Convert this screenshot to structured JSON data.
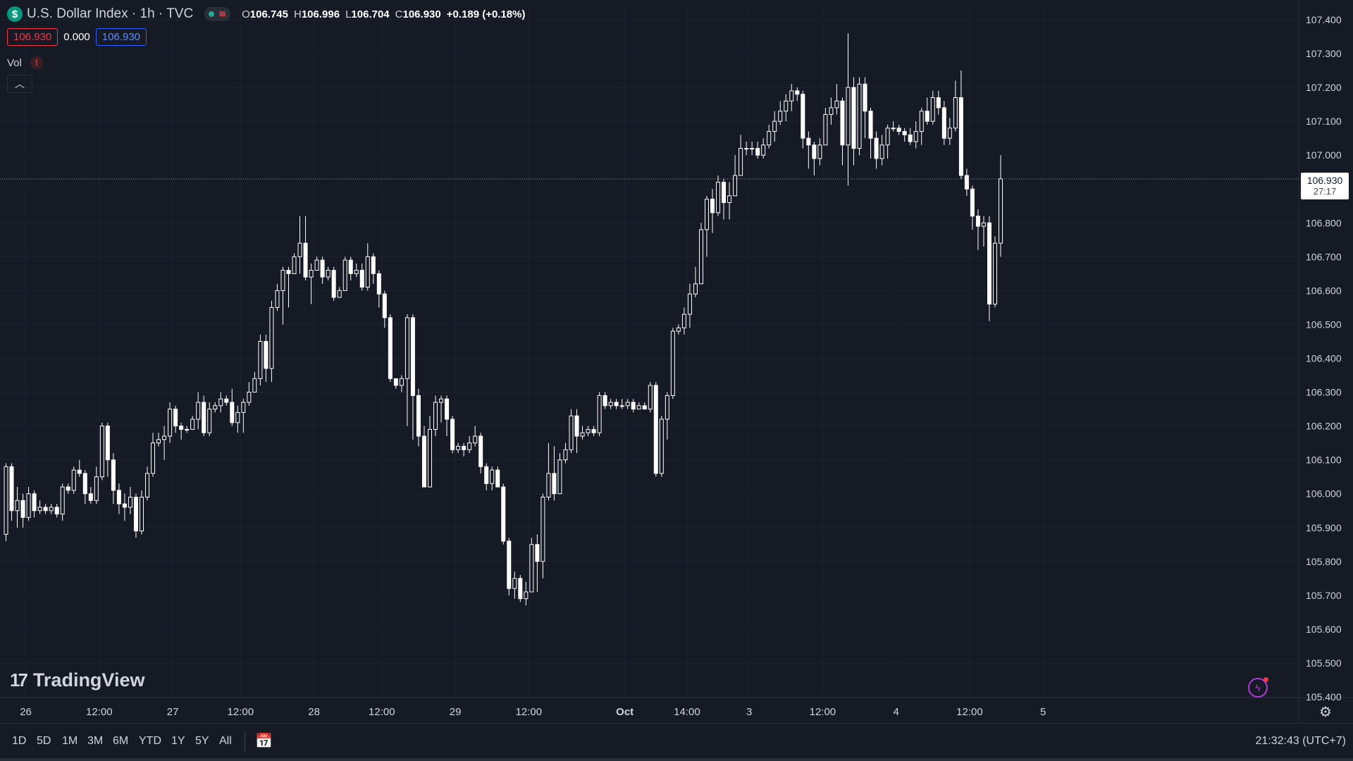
{
  "header": {
    "symbol_icon": "$",
    "title": "U.S. Dollar Index · 1h · TVC",
    "status_icons": [
      "market-open-dot",
      "data-delay-wave-icon"
    ],
    "ohlc": {
      "o_label": "O",
      "o_value": "106.745",
      "h_label": "H",
      "h_value": "106.996",
      "l_label": "L",
      "l_value": "106.704",
      "c_label": "C",
      "c_value": "106.930",
      "change": "+0.189 (+0.18%)"
    },
    "bid": "106.930",
    "spread": "0.000",
    "ask": "106.930",
    "volume_label": "Vol",
    "volume_alert": "!",
    "collapse_icon": "chevron-up-icon"
  },
  "price_label": {
    "value": "106.930",
    "countdown": "27:17"
  },
  "logo": {
    "mark": "17",
    "text": "TradingView"
  },
  "bottom_bar": {
    "ranges": [
      "1D",
      "5D",
      "1M",
      "3M",
      "6M",
      "YTD",
      "1Y",
      "5Y",
      "All"
    ],
    "calendar_icon": "calendar-range-icon",
    "clock": "21:32:43 (UTC+7)"
  },
  "colors": {
    "background": "#161a25",
    "grid": "#1f2330",
    "candle": "#ffffff",
    "text": "#d1d4dc",
    "red": "#f23645",
    "blue": "#2962ff",
    "green": "#089981"
  },
  "chart_data": {
    "type": "candlestick",
    "title": "U.S. Dollar Index · 1h · TVC",
    "grid": true,
    "ylim": [
      105.4,
      107.4
    ],
    "y_ticks": [
      "107.400",
      "107.300",
      "107.200",
      "107.100",
      "107.000",
      "106.900",
      "106.800",
      "106.700",
      "106.600",
      "106.500",
      "106.400",
      "106.300",
      "106.200",
      "106.100",
      "106.000",
      "105.900",
      "105.800",
      "105.700",
      "105.600",
      "105.500",
      "105.400"
    ],
    "x_ticks": [
      {
        "label": "26",
        "bar": 3.5
      },
      {
        "label": "12:00",
        "bar": 16.5
      },
      {
        "label": "27",
        "bar": 29.5
      },
      {
        "label": "12:00",
        "bar": 41.5
      },
      {
        "label": "28",
        "bar": 54.5
      },
      {
        "label": "12:00",
        "bar": 66.5
      },
      {
        "label": "29",
        "bar": 79.5
      },
      {
        "label": "12:00",
        "bar": 92.5
      },
      {
        "label": "Oct",
        "bar": 109.5
      },
      {
        "label": "14:00",
        "bar": 120.5
      },
      {
        "label": "3",
        "bar": 131.5
      },
      {
        "label": "12:00",
        "bar": 144.5
      },
      {
        "label": "4",
        "bar": 157.5
      },
      {
        "label": "12:00",
        "bar": 170.5
      },
      {
        "label": "5",
        "bar": 183.5
      }
    ],
    "last_price": 106.93,
    "candles": [
      [
        105.88,
        106.08,
        106.09,
        105.86
      ],
      [
        106.08,
        105.95,
        106.09,
        105.92
      ],
      [
        105.95,
        105.98,
        106.02,
        105.9
      ],
      [
        105.98,
        105.93,
        106.0,
        105.9
      ],
      [
        105.93,
        106.0,
        106.02,
        105.92
      ],
      [
        106.0,
        105.95,
        106.01,
        105.93
      ],
      [
        105.95,
        105.96,
        105.98,
        105.94
      ],
      [
        105.96,
        105.95,
        105.97,
        105.94
      ],
      [
        105.95,
        105.96,
        105.97,
        105.94
      ],
      [
        105.96,
        105.94,
        105.97,
        105.93
      ],
      [
        105.94,
        106.02,
        106.03,
        105.92
      ],
      [
        106.02,
        106.01,
        106.03,
        106.0
      ],
      [
        106.01,
        106.07,
        106.08,
        106.0
      ],
      [
        106.07,
        106.06,
        106.1,
        106.05
      ],
      [
        106.06,
        106.0,
        106.07,
        105.97
      ],
      [
        106.0,
        105.98,
        106.02,
        105.97
      ],
      [
        105.98,
        106.05,
        106.08,
        105.97
      ],
      [
        106.05,
        106.2,
        106.21,
        106.04
      ],
      [
        106.2,
        106.1,
        106.21,
        106.05
      ],
      [
        106.1,
        106.01,
        106.12,
        105.97
      ],
      [
        106.01,
        105.97,
        106.03,
        105.94
      ],
      [
        105.97,
        105.96,
        106.0,
        105.92
      ],
      [
        105.96,
        105.99,
        106.02,
        105.94
      ],
      [
        105.99,
        105.89,
        106.0,
        105.87
      ],
      [
        105.89,
        105.99,
        106.01,
        105.88
      ],
      [
        105.99,
        106.06,
        106.08,
        105.98
      ],
      [
        106.06,
        106.15,
        106.18,
        106.05
      ],
      [
        106.15,
        106.16,
        106.18,
        106.14
      ],
      [
        106.16,
        106.17,
        106.2,
        106.1
      ],
      [
        106.17,
        106.25,
        106.27,
        106.15
      ],
      [
        106.25,
        106.2,
        106.26,
        106.18
      ],
      [
        106.2,
        106.19,
        106.21,
        106.16
      ],
      [
        106.19,
        106.19,
        106.2,
        106.18
      ],
      [
        106.19,
        106.22,
        106.23,
        106.21
      ],
      [
        106.22,
        106.27,
        106.3,
        106.19
      ],
      [
        106.27,
        106.18,
        106.29,
        106.17
      ],
      [
        106.18,
        106.25,
        106.27,
        106.17
      ],
      [
        106.25,
        106.26,
        106.27,
        106.24
      ],
      [
        106.26,
        106.28,
        106.3,
        106.24
      ],
      [
        106.28,
        106.27,
        106.29,
        106.26
      ],
      [
        106.27,
        106.21,
        106.31,
        106.2
      ],
      [
        106.21,
        106.24,
        106.26,
        106.18
      ],
      [
        106.24,
        106.27,
        106.28,
        106.18
      ],
      [
        106.27,
        106.3,
        106.33,
        106.26
      ],
      [
        106.3,
        106.34,
        106.36,
        106.31
      ],
      [
        106.34,
        106.45,
        106.47,
        106.32
      ],
      [
        106.45,
        106.37,
        106.47,
        106.33
      ],
      [
        106.37,
        106.55,
        106.57,
        106.33
      ],
      [
        106.55,
        106.6,
        106.62,
        106.54
      ],
      [
        106.6,
        106.66,
        106.67,
        106.5
      ],
      [
        106.66,
        106.65,
        106.67,
        106.55
      ],
      [
        106.65,
        106.7,
        106.71,
        106.65
      ],
      [
        106.7,
        106.74,
        106.82,
        106.65
      ],
      [
        106.74,
        106.64,
        106.82,
        106.63
      ],
      [
        106.64,
        106.66,
        106.68,
        106.56
      ],
      [
        106.66,
        106.69,
        106.7,
        106.66
      ],
      [
        106.69,
        106.64,
        106.7,
        106.62
      ],
      [
        106.64,
        106.66,
        106.67,
        106.63
      ],
      [
        106.66,
        106.58,
        106.67,
        106.57
      ],
      [
        106.58,
        106.6,
        106.61,
        106.58
      ],
      [
        106.6,
        106.69,
        106.7,
        106.6
      ],
      [
        106.69,
        106.65,
        106.7,
        106.63
      ],
      [
        106.65,
        106.66,
        106.68,
        106.64
      ],
      [
        106.66,
        106.61,
        106.68,
        106.6
      ],
      [
        106.61,
        106.7,
        106.74,
        106.6
      ],
      [
        106.7,
        106.65,
        106.71,
        106.62
      ],
      [
        106.65,
        106.59,
        106.66,
        106.55
      ],
      [
        106.59,
        106.52,
        106.6,
        106.49
      ],
      [
        106.52,
        106.34,
        106.53,
        106.33
      ],
      [
        106.34,
        106.32,
        106.34,
        106.31
      ],
      [
        106.32,
        106.34,
        106.35,
        106.3
      ],
      [
        106.34,
        106.52,
        106.53,
        106.2
      ],
      [
        106.52,
        106.29,
        106.53,
        106.16
      ],
      [
        106.29,
        106.17,
        106.31,
        106.14
      ],
      [
        106.17,
        106.02,
        106.2,
        106.02
      ],
      [
        106.02,
        106.19,
        106.23,
        106.02
      ],
      [
        106.19,
        106.27,
        106.29,
        106.17
      ],
      [
        106.27,
        106.28,
        106.29,
        106.21
      ],
      [
        106.28,
        106.22,
        106.29,
        106.17
      ],
      [
        106.22,
        106.13,
        106.23,
        106.12
      ],
      [
        106.13,
        106.14,
        106.15,
        106.12
      ],
      [
        106.14,
        106.13,
        106.15,
        106.11
      ],
      [
        106.13,
        106.15,
        106.17,
        106.12
      ],
      [
        106.15,
        106.17,
        106.2,
        106.14
      ],
      [
        106.17,
        106.08,
        106.18,
        106.06
      ],
      [
        106.08,
        106.03,
        106.09,
        106.01
      ],
      [
        106.03,
        106.07,
        106.08,
        106.01
      ],
      [
        106.07,
        106.02,
        106.08,
        106.02
      ],
      [
        106.02,
        105.86,
        106.03,
        105.85
      ],
      [
        105.86,
        105.72,
        105.87,
        105.7
      ],
      [
        105.72,
        105.75,
        105.77,
        105.69
      ],
      [
        105.75,
        105.69,
        105.76,
        105.68
      ],
      [
        105.69,
        105.71,
        105.74,
        105.67
      ],
      [
        105.71,
        105.85,
        105.87,
        105.72
      ],
      [
        105.85,
        105.8,
        105.88,
        105.71
      ],
      [
        105.8,
        105.99,
        106.0,
        105.75
      ],
      [
        105.99,
        106.06,
        106.15,
        105.98
      ],
      [
        106.06,
        106.0,
        106.14,
        105.98
      ],
      [
        106.0,
        106.1,
        106.12,
        106.0
      ],
      [
        106.1,
        106.13,
        106.15,
        106.09
      ],
      [
        106.13,
        106.23,
        106.25,
        106.12
      ],
      [
        106.23,
        106.17,
        106.25,
        106.12
      ],
      [
        106.17,
        106.18,
        106.2,
        106.16
      ],
      [
        106.18,
        106.19,
        106.2,
        106.17
      ],
      [
        106.19,
        106.18,
        106.2,
        106.17
      ],
      [
        106.18,
        106.29,
        106.3,
        106.17
      ],
      [
        106.29,
        106.26,
        106.3,
        106.25
      ],
      [
        106.26,
        106.27,
        106.28,
        106.25
      ],
      [
        106.27,
        106.26,
        106.28,
        106.25
      ],
      [
        106.26,
        106.26,
        106.28,
        106.25
      ],
      [
        106.26,
        106.27,
        106.28,
        106.25
      ],
      [
        106.27,
        106.25,
        106.28,
        106.24
      ],
      [
        106.25,
        106.26,
        106.27,
        106.25
      ],
      [
        106.26,
        106.25,
        106.27,
        106.25
      ],
      [
        106.25,
        106.32,
        106.33,
        106.24
      ],
      [
        106.32,
        106.06,
        106.33,
        106.05
      ],
      [
        106.06,
        106.22,
        106.23,
        106.05
      ],
      [
        106.22,
        106.29,
        106.3,
        106.16
      ],
      [
        106.29,
        106.48,
        106.49,
        106.28
      ],
      [
        106.48,
        106.49,
        106.5,
        106.47
      ],
      [
        106.49,
        106.53,
        106.55,
        106.47
      ],
      [
        106.53,
        106.59,
        106.62,
        106.49
      ],
      [
        106.59,
        106.62,
        106.67,
        106.58
      ],
      [
        106.62,
        106.78,
        106.8,
        106.62
      ],
      [
        106.78,
        106.87,
        106.88,
        106.7
      ],
      [
        106.87,
        106.83,
        106.9,
        106.77
      ],
      [
        106.83,
        106.92,
        106.94,
        106.82
      ],
      [
        106.92,
        106.86,
        106.93,
        106.81
      ],
      [
        106.86,
        106.88,
        106.92,
        106.81
      ],
      [
        106.88,
        106.94,
        107.0,
        106.89
      ],
      [
        106.94,
        107.02,
        107.06,
        106.95
      ],
      [
        107.02,
        107.02,
        107.04,
        107.0
      ],
      [
        107.02,
        107.02,
        107.04,
        107.0
      ],
      [
        107.02,
        107.0,
        107.04,
        106.99
      ],
      [
        107.0,
        107.03,
        107.05,
        106.99
      ],
      [
        107.03,
        107.07,
        107.09,
        107.02
      ],
      [
        107.07,
        107.1,
        107.13,
        107.04
      ],
      [
        107.1,
        107.13,
        107.16,
        107.09
      ],
      [
        107.13,
        107.16,
        107.18,
        107.1
      ],
      [
        107.16,
        107.19,
        107.21,
        107.13
      ],
      [
        107.19,
        107.18,
        107.2,
        107.16
      ],
      [
        107.18,
        107.05,
        107.19,
        107.02
      ],
      [
        107.05,
        107.03,
        107.07,
        106.96
      ],
      [
        107.03,
        106.99,
        107.04,
        106.94
      ],
      [
        106.99,
        107.03,
        107.05,
        106.97
      ],
      [
        107.03,
        107.12,
        107.14,
        107.03
      ],
      [
        107.12,
        107.14,
        107.17,
        107.09
      ],
      [
        107.14,
        107.16,
        107.21,
        107.12
      ],
      [
        107.16,
        107.03,
        107.17,
        106.97
      ],
      [
        107.03,
        107.2,
        107.36,
        106.91
      ],
      [
        107.2,
        107.02,
        107.23,
        106.97
      ],
      [
        107.02,
        107.21,
        107.23,
        107.0
      ],
      [
        107.21,
        107.13,
        107.23,
        107.05
      ],
      [
        107.13,
        107.05,
        107.14,
        106.99
      ],
      [
        107.05,
        106.99,
        107.07,
        106.96
      ],
      [
        106.99,
        107.03,
        107.06,
        106.97
      ],
      [
        107.03,
        107.08,
        107.09,
        106.99
      ],
      [
        107.08,
        107.08,
        107.1,
        107.07
      ],
      [
        107.08,
        107.07,
        107.09,
        107.06
      ],
      [
        107.07,
        107.06,
        107.08,
        107.04
      ],
      [
        107.06,
        107.04,
        107.08,
        107.03
      ],
      [
        107.04,
        107.07,
        107.1,
        107.02
      ],
      [
        107.07,
        107.13,
        107.14,
        107.03
      ],
      [
        107.13,
        107.1,
        107.17,
        107.09
      ],
      [
        107.1,
        107.17,
        107.19,
        107.09
      ],
      [
        107.17,
        107.14,
        107.19,
        107.12
      ],
      [
        107.14,
        107.05,
        107.16,
        107.03
      ],
      [
        107.05,
        107.08,
        107.11,
        107.03
      ],
      [
        107.08,
        107.17,
        107.22,
        107.07
      ],
      [
        107.17,
        106.94,
        107.25,
        106.93
      ],
      [
        106.94,
        106.9,
        106.96,
        106.88
      ],
      [
        106.9,
        106.82,
        106.91,
        106.78
      ],
      [
        106.82,
        106.79,
        106.84,
        106.72
      ],
      [
        106.79,
        106.8,
        106.82,
        106.73
      ],
      [
        106.8,
        106.56,
        106.82,
        106.51
      ],
      [
        106.56,
        106.74,
        106.76,
        106.55
      ],
      [
        106.74,
        106.93,
        107.0,
        106.7
      ]
    ]
  }
}
